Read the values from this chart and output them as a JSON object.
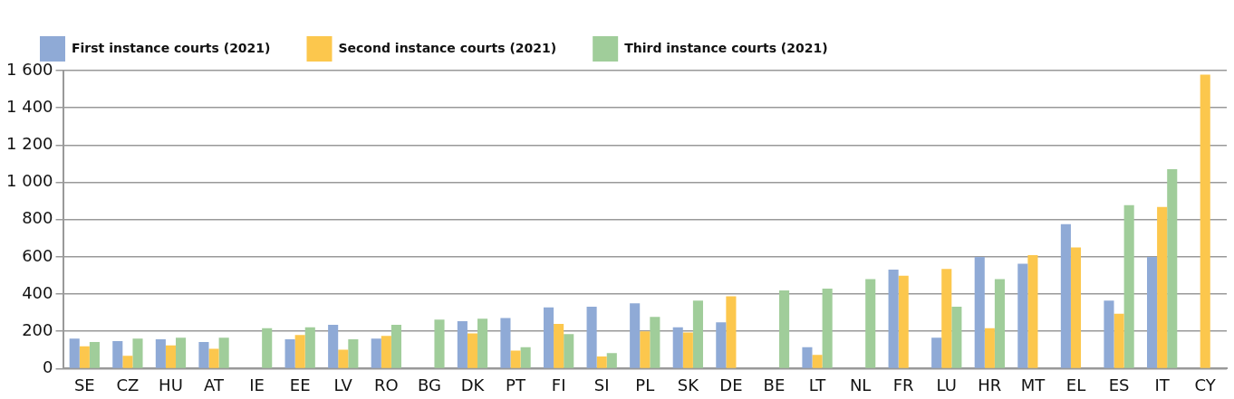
{
  "chart_data": {
    "type": "bar",
    "categories": [
      "SE",
      "CZ",
      "HU",
      "AT",
      "IE",
      "EE",
      "LV",
      "RO",
      "BG",
      "DK",
      "PT",
      "FI",
      "SI",
      "PL",
      "SK",
      "DE",
      "BE",
      "LT",
      "NL",
      "FR",
      "LU",
      "HR",
      "MT",
      "EL",
      "ES",
      "IT",
      "CY"
    ],
    "series": [
      {
        "name": "First instance courts (2021)",
        "color": "#8faad6",
        "values": [
          161,
          148,
          157,
          143,
          null,
          157,
          235,
          161,
          null,
          254,
          272,
          328,
          332,
          351,
          222,
          249,
          null,
          115,
          null,
          531,
          166,
          600,
          563,
          775,
          365,
          600,
          null
        ]
      },
      {
        "name": "Second instance courts (2021)",
        "color": "#fcc74d",
        "values": [
          120,
          69,
          125,
          106,
          null,
          180,
          102,
          175,
          null,
          189,
          97,
          240,
          65,
          200,
          194,
          388,
          null,
          74,
          null,
          498,
          535,
          217,
          609,
          651,
          295,
          868,
          1578
        ]
      },
      {
        "name": "Third instance courts (2021)",
        "color": "#a0cd9a",
        "values": [
          143,
          161,
          166,
          166,
          217,
          222,
          157,
          235,
          263,
          268,
          115,
          185,
          83,
          277,
          365,
          null,
          420,
          429,
          480,
          null,
          332,
          480,
          null,
          null,
          877,
          1071,
          null
        ]
      }
    ],
    "ylim": [
      0,
      1600
    ],
    "yticks": [
      0,
      200,
      400,
      600,
      800,
      {
        "value": 1000,
        "label": "1 000"
      },
      {
        "value": 1200,
        "label": "1 200"
      },
      {
        "value": 1400,
        "label": "1 400"
      },
      {
        "value": 1600,
        "label": "1 600"
      }
    ],
    "grid": "y",
    "legend": "top"
  }
}
